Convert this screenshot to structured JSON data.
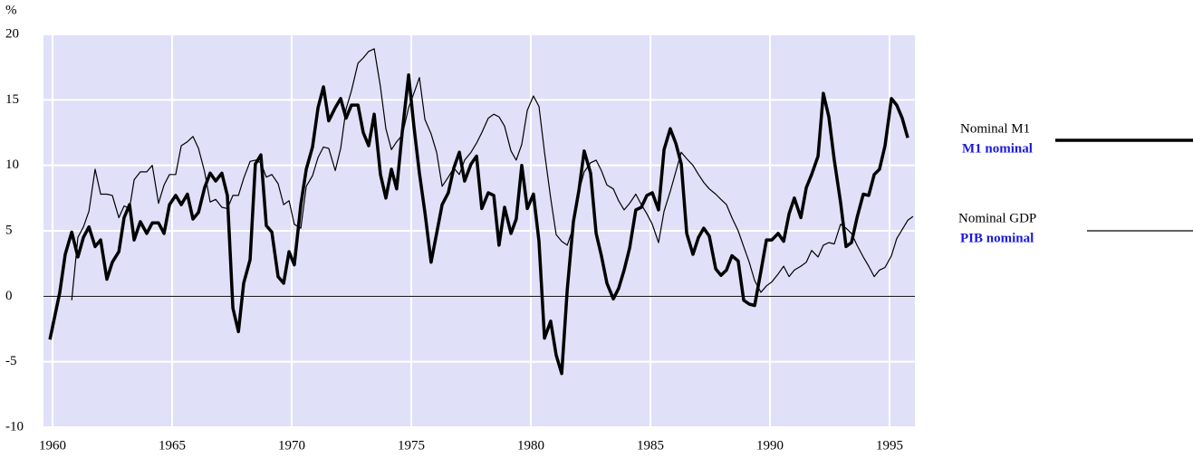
{
  "chart_data": {
    "type": "line",
    "ylabel": "%",
    "xlim": [
      1959.62,
      1996.06
    ],
    "ylim": [
      -10,
      20
    ],
    "xticks": [
      1960,
      1965,
      1970,
      1975,
      1980,
      1985,
      1990,
      1995
    ],
    "yticks": [
      -10,
      -5,
      0,
      5,
      10,
      15,
      20
    ],
    "grid": true,
    "background": "#e0e0f8",
    "series": [
      {
        "name": "Nominal M1",
        "name_fr": "M1 nominal",
        "color": "#000000",
        "width": 3.5,
        "x": [
          1959.89,
          1960.3,
          1960.53,
          1960.8,
          1961.06,
          1961.29,
          1961.52,
          1961.78,
          1962.01,
          1962.27,
          1962.5,
          1962.77,
          1962.99,
          1963.22,
          1963.41,
          1963.67,
          1963.94,
          1964.17,
          1964.43,
          1964.66,
          1964.89,
          1965.15,
          1965.38,
          1965.64,
          1965.87,
          1966.1,
          1966.36,
          1966.59,
          1966.82,
          1967.08,
          1967.31,
          1967.54,
          1967.77,
          1967.99,
          1968.26,
          1968.48,
          1968.71,
          1968.94,
          1969.17,
          1969.43,
          1969.66,
          1969.89,
          1970.11,
          1970.38,
          1970.61,
          1970.87,
          1971.1,
          1971.33,
          1971.55,
          1971.82,
          1972.05,
          1972.27,
          1972.5,
          1972.77,
          1972.99,
          1973.22,
          1973.45,
          1973.71,
          1973.94,
          1974.17,
          1974.39,
          1974.62,
          1974.89,
          1975.11,
          1975.34,
          1975.57,
          1975.83,
          1976.06,
          1976.29,
          1976.55,
          1976.78,
          1977.01,
          1977.23,
          1977.5,
          1977.73,
          1977.95,
          1978.22,
          1978.45,
          1978.67,
          1978.9,
          1979.17,
          1979.39,
          1979.62,
          1979.85,
          1980.11,
          1980.34,
          1980.57,
          1980.83,
          1981.06,
          1981.29,
          1981.52,
          1981.78,
          1982.01,
          1982.23,
          1982.5,
          1982.73,
          1982.95,
          1983.18,
          1983.45,
          1983.67,
          1983.9,
          1984.13,
          1984.39,
          1984.62,
          1984.85,
          1985.08,
          1985.34,
          1985.57,
          1985.83,
          1986.06,
          1986.29,
          1986.52,
          1986.78,
          1987.01,
          1987.23,
          1987.46,
          1987.73,
          1987.95,
          1988.18,
          1988.41,
          1988.67,
          1988.9,
          1989.13,
          1989.36,
          1989.62,
          1989.85,
          1990.08,
          1990.34,
          1990.57,
          1990.8,
          1991.02,
          1991.29,
          1991.52,
          1991.74,
          1992.01,
          1992.23,
          1992.46,
          1992.69,
          1992.95,
          1993.18,
          1993.41,
          1993.64,
          1993.9,
          1994.13,
          1994.36,
          1994.58,
          1994.81,
          1995.08,
          1995.3,
          1995.53,
          1995.76
        ],
        "values": [
          -3.3,
          0.3,
          3.2,
          4.9,
          3.0,
          4.5,
          5.3,
          3.8,
          4.3,
          1.3,
          2.6,
          3.4,
          6.0,
          7.0,
          4.3,
          5.7,
          4.8,
          5.6,
          5.6,
          4.8,
          7.0,
          7.7,
          7.0,
          7.8,
          5.9,
          6.4,
          8.3,
          9.4,
          8.8,
          9.4,
          7.7,
          -0.9,
          -2.7,
          1.0,
          2.8,
          10.1,
          10.8,
          5.4,
          4.9,
          1.5,
          1.0,
          3.4,
          2.4,
          7.0,
          9.7,
          11.4,
          14.4,
          16.0,
          13.4,
          14.4,
          15.1,
          13.6,
          14.6,
          14.6,
          12.5,
          11.5,
          13.9,
          9.3,
          7.5,
          9.7,
          8.2,
          12.5,
          16.9,
          13.0,
          9.4,
          6.4,
          2.6,
          4.8,
          7.0,
          7.9,
          9.8,
          11.0,
          8.8,
          10.1,
          10.7,
          6.7,
          7.9,
          7.7,
          3.9,
          6.8,
          4.8,
          5.9,
          10.0,
          6.7,
          7.8,
          4.2,
          -3.2,
          -1.9,
          -4.5,
          -5.9,
          0.5,
          5.7,
          8.1,
          11.1,
          9.4,
          4.8,
          3.1,
          1.0,
          -0.2,
          0.6,
          2.0,
          3.7,
          6.6,
          6.8,
          7.7,
          7.9,
          6.6,
          11.2,
          12.8,
          11.7,
          10.1,
          4.8,
          3.2,
          4.5,
          5.2,
          4.6,
          2.1,
          1.6,
          2.0,
          3.1,
          2.7,
          -0.3,
          -0.6,
          -0.7,
          1.9,
          4.3,
          4.3,
          4.8,
          4.2,
          6.3,
          7.5,
          6.0,
          8.3,
          9.3,
          10.7,
          15.5,
          13.7,
          10.4,
          7.2,
          3.8,
          4.1,
          6.0,
          7.8,
          7.7,
          9.3,
          9.7,
          11.5,
          15.1,
          14.6,
          13.6,
          12.1
        ]
      },
      {
        "name": "Nominal GDP",
        "name_fr": "PIB nominal",
        "color": "#000000",
        "width": 1.2,
        "x": [
          1960.8,
          1961.06,
          1961.29,
          1961.52,
          1961.78,
          1962.01,
          1962.27,
          1962.5,
          1962.77,
          1962.99,
          1963.22,
          1963.41,
          1963.67,
          1963.94,
          1964.17,
          1964.43,
          1964.66,
          1964.89,
          1965.15,
          1965.38,
          1965.64,
          1965.87,
          1966.1,
          1966.36,
          1966.59,
          1966.82,
          1967.08,
          1967.31,
          1967.54,
          1967.77,
          1967.99,
          1968.26,
          1968.48,
          1968.71,
          1968.94,
          1969.17,
          1969.43,
          1969.66,
          1969.89,
          1970.11,
          1970.38,
          1970.61,
          1970.87,
          1971.1,
          1971.33,
          1971.55,
          1971.82,
          1972.05,
          1972.27,
          1972.5,
          1972.77,
          1972.99,
          1973.22,
          1973.45,
          1973.71,
          1973.94,
          1974.17,
          1974.39,
          1974.62,
          1974.89,
          1975.11,
          1975.34,
          1975.57,
          1975.83,
          1976.06,
          1976.29,
          1976.55,
          1976.78,
          1977.01,
          1977.23,
          1977.5,
          1977.73,
          1977.95,
          1978.22,
          1978.45,
          1978.67,
          1978.9,
          1979.17,
          1979.39,
          1979.62,
          1979.85,
          1980.11,
          1980.34,
          1980.57,
          1980.83,
          1981.06,
          1981.29,
          1981.52,
          1981.78,
          1982.01,
          1982.23,
          1982.5,
          1982.73,
          1982.95,
          1983.18,
          1983.45,
          1983.67,
          1983.9,
          1984.13,
          1984.39,
          1984.62,
          1984.85,
          1985.08,
          1985.34,
          1985.57,
          1985.83,
          1986.06,
          1986.29,
          1986.52,
          1986.78,
          1987.01,
          1987.23,
          1987.46,
          1987.73,
          1987.95,
          1988.18,
          1988.41,
          1988.67,
          1988.9,
          1989.13,
          1989.36,
          1989.62,
          1989.85,
          1990.08,
          1990.34,
          1990.57,
          1990.8,
          1991.02,
          1991.29,
          1991.52,
          1991.74,
          1992.01,
          1992.23,
          1992.46,
          1992.69,
          1992.95,
          1993.18,
          1993.41,
          1993.64,
          1993.9,
          1994.13,
          1994.36,
          1994.58,
          1994.81,
          1995.08,
          1995.3,
          1995.53,
          1995.76,
          1995.98
        ],
        "values": [
          -0.3,
          4.5,
          5.3,
          6.5,
          9.7,
          7.8,
          7.8,
          7.7,
          6.0,
          6.9,
          6.7,
          8.9,
          9.5,
          9.5,
          10.0,
          7.1,
          8.5,
          9.3,
          9.3,
          11.5,
          11.8,
          12.2,
          11.3,
          9.5,
          7.2,
          7.4,
          6.8,
          6.7,
          7.7,
          7.7,
          9.0,
          10.3,
          10.4,
          10.2,
          9.1,
          9.3,
          8.6,
          7.0,
          7.3,
          5.5,
          5.2,
          8.4,
          9.2,
          10.6,
          11.4,
          11.3,
          9.6,
          11.3,
          14.3,
          15.7,
          17.8,
          18.2,
          18.7,
          18.9,
          16.0,
          12.8,
          11.2,
          11.8,
          12.3,
          14.4,
          15.5,
          16.7,
          13.5,
          12.4,
          11.0,
          8.4,
          9.1,
          9.8,
          9.3,
          10.4,
          11.0,
          11.7,
          12.5,
          13.6,
          13.9,
          13.7,
          13.0,
          11.1,
          10.4,
          11.6,
          14.2,
          15.3,
          14.5,
          11.0,
          7.5,
          4.7,
          4.2,
          3.9,
          5.3,
          8.0,
          9.5,
          10.2,
          10.4,
          9.6,
          8.5,
          8.2,
          7.3,
          6.6,
          7.1,
          7.8,
          7.0,
          6.3,
          5.5,
          4.1,
          6.5,
          8.0,
          9.5,
          11.0,
          10.5,
          10.0,
          9.3,
          8.7,
          8.2,
          7.8,
          7.4,
          7.0,
          6.0,
          5.0,
          3.8,
          2.6,
          1.2,
          0.3,
          0.8,
          1.1,
          1.7,
          2.3,
          1.5,
          2.0,
          2.3,
          2.6,
          3.5,
          3.0,
          3.9,
          4.1,
          4.0,
          5.5,
          5.2,
          4.8,
          3.9,
          3.0,
          2.3,
          1.5,
          2.0,
          2.2,
          3.1,
          4.4,
          5.1,
          5.8,
          6.1
        ]
      }
    ]
  }
}
